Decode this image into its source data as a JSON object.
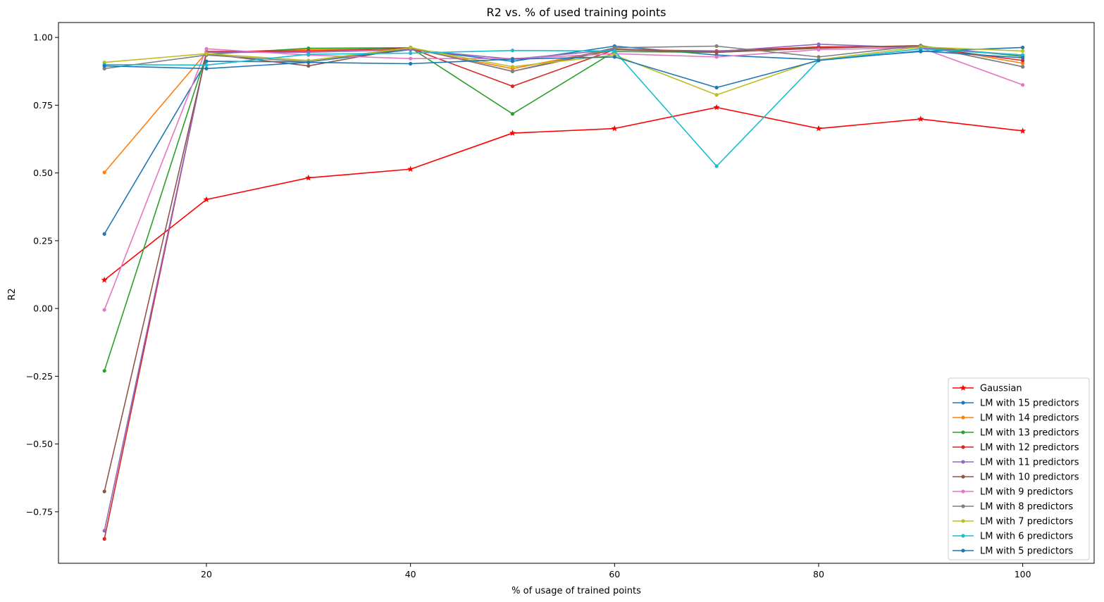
{
  "chart_data": {
    "type": "line",
    "title": "R2 vs. % of used training points",
    "xlabel": "% of usage of trained points",
    "ylabel": "R2",
    "xlim": [
      5.5,
      107
    ],
    "ylim": [
      -0.94,
      1.055
    ],
    "xticks": [
      20,
      40,
      60,
      80,
      100
    ],
    "yticks": [
      -0.75,
      -0.5,
      -0.25,
      0.0,
      0.25,
      0.5,
      0.75,
      1.0
    ],
    "xtick_labels": [
      "20",
      "40",
      "60",
      "80",
      "100"
    ],
    "ytick_labels": [
      "−0.75",
      "−0.50",
      "−0.25",
      "0.00",
      "0.25",
      "0.50",
      "0.75",
      "1.00"
    ],
    "grid": false,
    "legend_position": "lower-right",
    "x": [
      10,
      20,
      30,
      40,
      50,
      60,
      70,
      80,
      90,
      100
    ],
    "series": [
      {
        "name": "Gaussian",
        "color": "#ff0000",
        "marker": "star",
        "values": [
          0.105,
          0.402,
          0.482,
          0.514,
          0.647,
          0.664,
          0.742,
          0.664,
          0.699,
          0.655
        ]
      },
      {
        "name": "LM with 15 predictors",
        "color": "#1f77b4",
        "marker": "dot",
        "values": [
          0.275,
          0.912,
          0.91,
          0.955,
          0.912,
          0.968,
          0.935,
          0.918,
          0.948,
          0.963
        ]
      },
      {
        "name": "LM with 14 predictors",
        "color": "#ff7f0e",
        "marker": "dot",
        "values": [
          0.502,
          0.945,
          0.955,
          0.958,
          0.885,
          0.958,
          0.945,
          0.962,
          0.97,
          0.905
        ]
      },
      {
        "name": "LM with 13 predictors",
        "color": "#2ca02c",
        "marker": "dot",
        "values": [
          -0.23,
          0.938,
          0.96,
          0.962,
          0.718,
          0.948,
          0.945,
          0.965,
          0.968,
          0.93
        ]
      },
      {
        "name": "LM with 12 predictors",
        "color": "#d62728",
        "marker": "dot",
        "values": [
          -0.85,
          0.948,
          0.95,
          0.96,
          0.82,
          0.955,
          0.95,
          0.965,
          0.965,
          0.915
        ]
      },
      {
        "name": "LM with 11 predictors",
        "color": "#9467bd",
        "marker": "dot",
        "values": [
          -0.82,
          0.945,
          0.945,
          0.955,
          0.92,
          0.955,
          0.948,
          0.975,
          0.962,
          0.935
        ]
      },
      {
        "name": "LM with 10 predictors",
        "color": "#8c564b",
        "marker": "dot",
        "values": [
          -0.675,
          0.94,
          0.895,
          0.963,
          0.875,
          0.955,
          0.945,
          0.96,
          0.97,
          0.892
        ]
      },
      {
        "name": "LM with 9 predictors",
        "color": "#e377c2",
        "marker": "dot",
        "values": [
          -0.005,
          0.958,
          0.935,
          0.922,
          0.922,
          0.94,
          0.928,
          0.955,
          0.962,
          0.825
        ]
      },
      {
        "name": "LM with 8 predictors",
        "color": "#7f7f7f",
        "marker": "dot",
        "values": [
          0.885,
          0.935,
          0.91,
          0.962,
          0.875,
          0.962,
          0.968,
          0.928,
          0.97,
          0.892
        ]
      },
      {
        "name": "LM with 7 predictors",
        "color": "#bcbd22",
        "marker": "dot",
        "values": [
          0.908,
          0.94,
          0.915,
          0.962,
          0.892,
          0.935,
          0.788,
          0.918,
          0.965,
          0.95
        ]
      },
      {
        "name": "LM with 6 predictors",
        "color": "#17becf",
        "marker": "dot",
        "values": [
          0.9,
          0.898,
          0.938,
          0.942,
          0.952,
          0.95,
          0.525,
          0.915,
          0.958,
          0.935
        ]
      },
      {
        "name": "LM with 5 predictors",
        "color": "#1f77b4",
        "marker": "dot",
        "values": [
          0.895,
          0.885,
          0.908,
          0.903,
          0.92,
          0.928,
          0.815,
          0.915,
          0.95,
          0.925
        ]
      }
    ]
  }
}
